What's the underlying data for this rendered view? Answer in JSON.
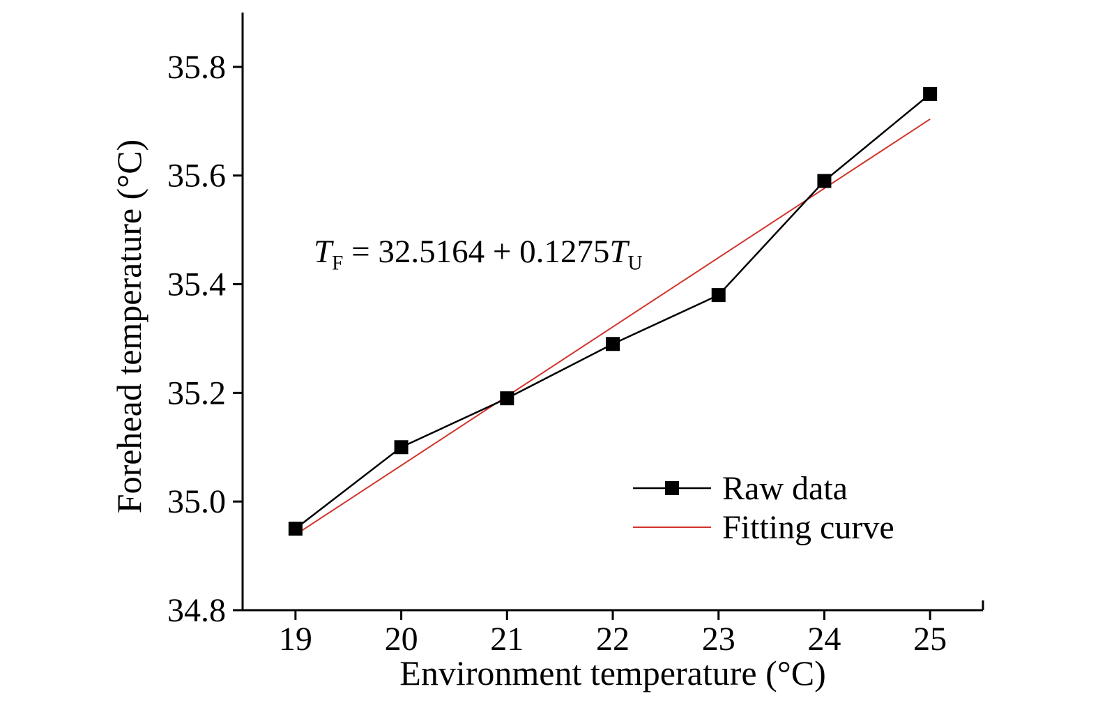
{
  "chart_data": {
    "type": "line",
    "title": "",
    "xlabel": "Environment temperature (°C)",
    "ylabel": "Forehead temperature (°C)",
    "x": [
      19,
      20,
      21,
      22,
      23,
      24,
      25
    ],
    "series": [
      {
        "name": "Raw data",
        "values": [
          34.95,
          35.1,
          35.19,
          35.29,
          35.38,
          35.59,
          35.75
        ],
        "color": "#000000",
        "marker": "square"
      },
      {
        "name": "Fitting curve",
        "fit_intercept": 32.5164,
        "fit_slope": 0.1275,
        "x_start": 19,
        "x_end": 25,
        "color": "#d0342c",
        "marker": "none"
      }
    ],
    "xlim": [
      18.5,
      25.5
    ],
    "ylim": [
      34.8,
      35.9
    ],
    "x_ticks": [
      "19",
      "20",
      "21",
      "22",
      "23",
      "24",
      "25"
    ],
    "y_ticks": [
      "34.8",
      "35.0",
      "35.2",
      "35.4",
      "35.6",
      "35.8"
    ],
    "grid": false,
    "legend_position": "inside lower right"
  },
  "annotation": {
    "v1": "T",
    "s1": "F",
    "mid": " = 32.5164 + 0.1275",
    "v2": "T",
    "s2": "U"
  }
}
